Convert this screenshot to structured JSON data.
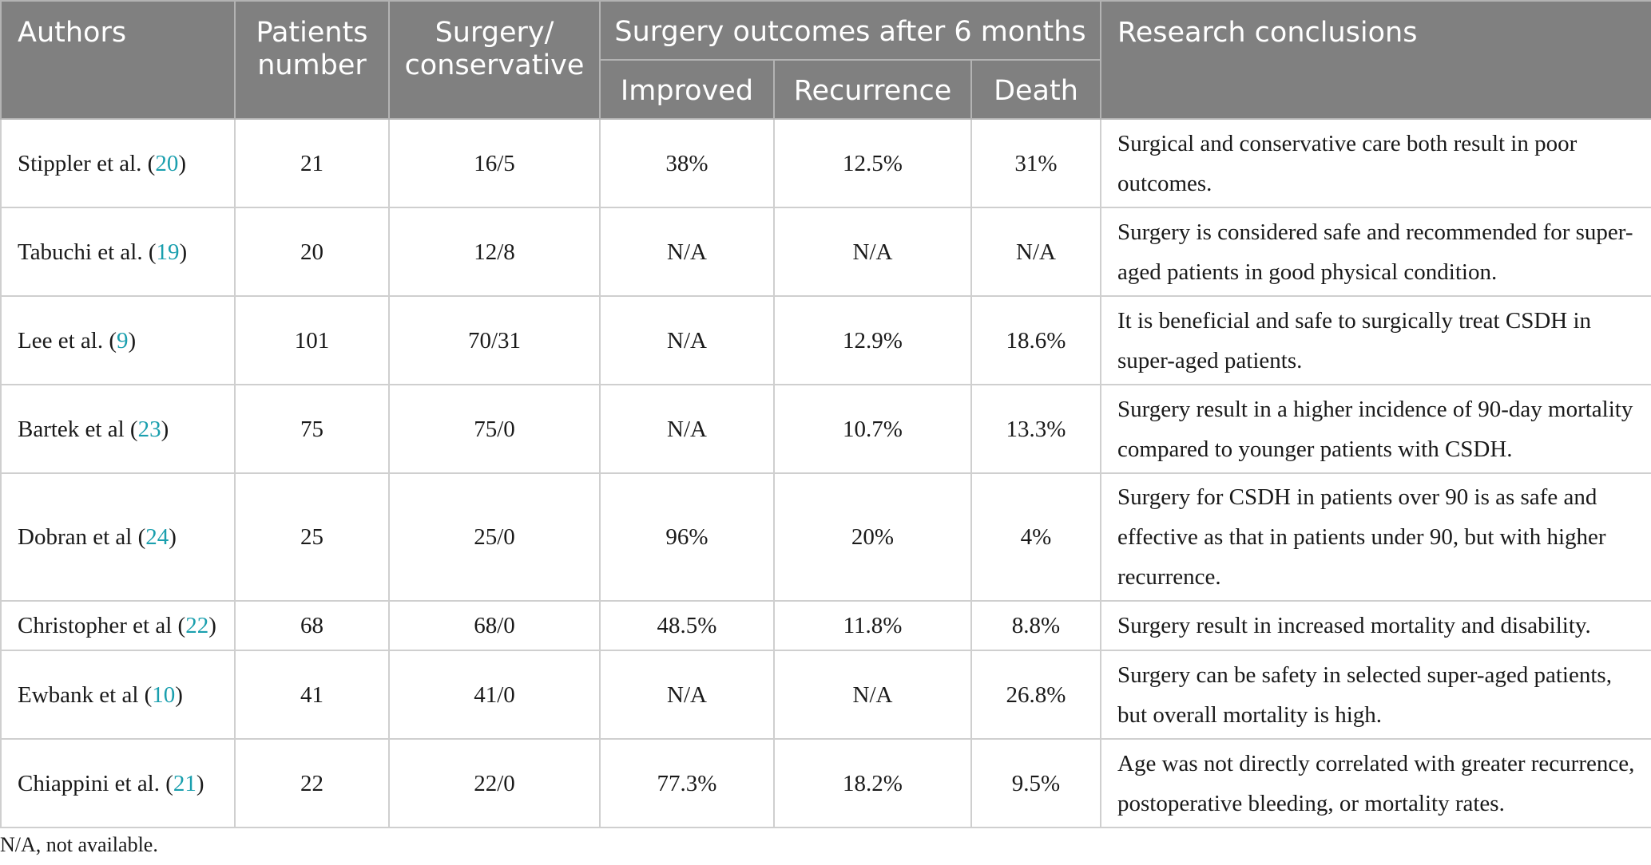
{
  "table": {
    "headers": {
      "authors": "Authors",
      "patients": "Patients number",
      "surgery": "Surgery/ conservative",
      "outcomes_group": "Surgery outcomes after 6 months",
      "improved": "Improved",
      "recurrence": "Recurrence",
      "death": "Death",
      "conclusions": "Research conclusions"
    },
    "rows": [
      {
        "author": "Stippler et al. (",
        "ref": "20",
        "close": ")",
        "patients": "21",
        "surgery": "16/5",
        "improved": "38%",
        "recurrence": "12.5%",
        "death": "31%",
        "conclusion": "Surgical and conservative care both result in poor outcomes."
      },
      {
        "author": "Tabuchi et al. (",
        "ref": "19",
        "close": ")",
        "patients": "20",
        "surgery": "12/8",
        "improved": "N/A",
        "recurrence": "N/A",
        "death": "N/A",
        "conclusion": "Surgery is considered safe and recommended for super-aged patients in good physical condition."
      },
      {
        "author": "Lee et al. (",
        "ref": "9",
        "close": ")",
        "patients": "101",
        "surgery": "70/31",
        "improved": "N/A",
        "recurrence": "12.9%",
        "death": "18.6%",
        "conclusion": "It is beneficial and safe to surgically treat CSDH in super-aged patients."
      },
      {
        "author": "Bartek et al (",
        "ref": "23",
        "close": ")",
        "patients": "75",
        "surgery": "75/0",
        "improved": "N/A",
        "recurrence": "10.7%",
        "death": "13.3%",
        "conclusion": "Surgery result in a higher incidence of 90-day mortality compared to younger patients with CSDH."
      },
      {
        "author": "Dobran et al (",
        "ref": "24",
        "close": ")",
        "patients": "25",
        "surgery": "25/0",
        "improved": "96%",
        "recurrence": "20%",
        "death": "4%",
        "conclusion": "Surgery for CSDH in patients over 90 is as safe and effective as that in patients under 90, but with higher recurrence."
      },
      {
        "author": "Christopher et al (",
        "ref": "22",
        "close": ")",
        "patients": "68",
        "surgery": "68/0",
        "improved": "48.5%",
        "recurrence": "11.8%",
        "death": "8.8%",
        "conclusion": "Surgery result in increased mortality and disability."
      },
      {
        "author": "Ewbank et al (",
        "ref": "10",
        "close": ")",
        "patients": "41",
        "surgery": "41/0",
        "improved": "N/A",
        "recurrence": "N/A",
        "death": "26.8%",
        "conclusion": "Surgery can be safety in selected super-aged patients, but overall mortality is high."
      },
      {
        "author": "Chiappini et al. (",
        "ref": "21",
        "close": ")",
        "patients": "22",
        "surgery": "22/0",
        "improved": "77.3%",
        "recurrence": "18.2%",
        "death": "9.5%",
        "conclusion": "Age was not directly correlated with greater recurrence, postoperative bleeding, or mortality rates."
      }
    ]
  },
  "footnote": "N/A, not available."
}
